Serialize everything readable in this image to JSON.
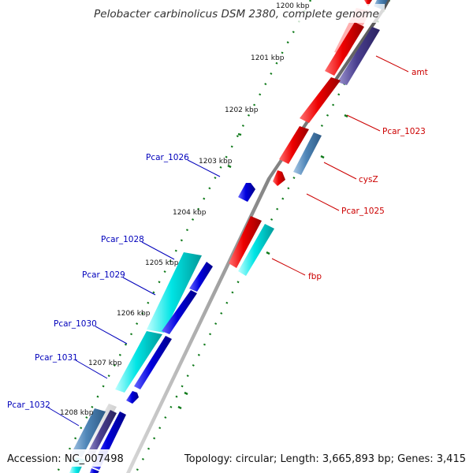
{
  "header": {
    "title": "Pelobacter carbinolicus DSM 2380, complete genome"
  },
  "footer": {
    "accession": "Accession: NC_007498",
    "summary": "Topology: circular; Length: 3,665,893 bp; Genes: 3,415"
  },
  "ruler": {
    "unit": "kbp",
    "labels": [
      "1200 kbp",
      "1201 kbp",
      "1202 kbp",
      "1203 kbp",
      "1204 kbp",
      "1205 kbp",
      "1206 kbp",
      "1207 kbp",
      "1208 kbp"
    ]
  },
  "colors": {
    "forward_red": "#ee0000",
    "reverse_blue": "#0000dd",
    "cyan": "#00dddd",
    "steel_blue": "#4f86b8",
    "purple": "#4a3f8f",
    "backbone": "#8a8a8a",
    "tick_green": "#0f7a1a",
    "label_red": "#cc0000",
    "label_blue": "#0000bb"
  },
  "genes": {
    "right": [
      {
        "label": "amt",
        "color": "#cc0000"
      },
      {
        "label": "Pcar_1023",
        "color": "#cc0000"
      },
      {
        "label": "cysZ",
        "color": "#cc0000"
      },
      {
        "label": "Pcar_1025",
        "color": "#cc0000"
      },
      {
        "label": "fbp",
        "color": "#cc0000"
      }
    ],
    "left": [
      {
        "label": "Pcar_1026",
        "color": "#0000bb"
      },
      {
        "label": "Pcar_1028",
        "color": "#0000bb"
      },
      {
        "label": "Pcar_1029",
        "color": "#0000bb"
      },
      {
        "label": "Pcar_1030",
        "color": "#0000bb"
      },
      {
        "label": "Pcar_1031",
        "color": "#0000bb"
      },
      {
        "label": "Pcar_1032",
        "color": "#0000bb"
      }
    ]
  }
}
